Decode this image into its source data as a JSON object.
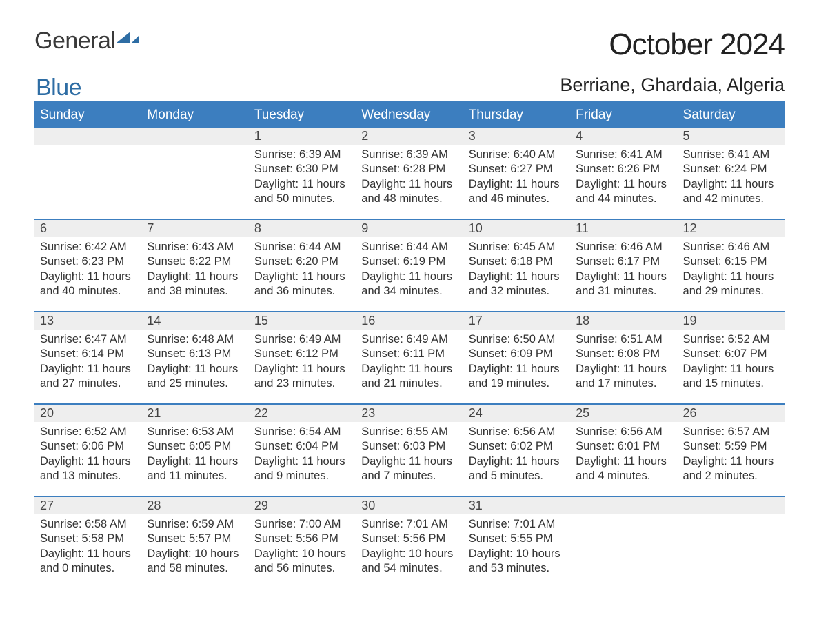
{
  "logo": {
    "text1": "General",
    "text2": "Blue",
    "icon_color": "#2e6da4"
  },
  "title": "October 2024",
  "location": "Berriane, Ghardaia, Algeria",
  "colors": {
    "header_bg": "#3c7ebf",
    "header_text": "#ffffff",
    "daynum_bg": "#eeeeee",
    "row_divider": "#3c7ebf",
    "body_text": "#333333",
    "page_bg": "#ffffff"
  },
  "typography": {
    "title_fontsize": 44,
    "location_fontsize": 27,
    "weekday_fontsize": 19,
    "daynum_fontsize": 18,
    "body_fontsize": 16.5
  },
  "weekdays": [
    "Sunday",
    "Monday",
    "Tuesday",
    "Wednesday",
    "Thursday",
    "Friday",
    "Saturday"
  ],
  "weeks": [
    [
      null,
      null,
      {
        "n": "1",
        "sr": "Sunrise: 6:39 AM",
        "ss": "Sunset: 6:30 PM",
        "d1": "Daylight: 11 hours",
        "d2": "and 50 minutes."
      },
      {
        "n": "2",
        "sr": "Sunrise: 6:39 AM",
        "ss": "Sunset: 6:28 PM",
        "d1": "Daylight: 11 hours",
        "d2": "and 48 minutes."
      },
      {
        "n": "3",
        "sr": "Sunrise: 6:40 AM",
        "ss": "Sunset: 6:27 PM",
        "d1": "Daylight: 11 hours",
        "d2": "and 46 minutes."
      },
      {
        "n": "4",
        "sr": "Sunrise: 6:41 AM",
        "ss": "Sunset: 6:26 PM",
        "d1": "Daylight: 11 hours",
        "d2": "and 44 minutes."
      },
      {
        "n": "5",
        "sr": "Sunrise: 6:41 AM",
        "ss": "Sunset: 6:24 PM",
        "d1": "Daylight: 11 hours",
        "d2": "and 42 minutes."
      }
    ],
    [
      {
        "n": "6",
        "sr": "Sunrise: 6:42 AM",
        "ss": "Sunset: 6:23 PM",
        "d1": "Daylight: 11 hours",
        "d2": "and 40 minutes."
      },
      {
        "n": "7",
        "sr": "Sunrise: 6:43 AM",
        "ss": "Sunset: 6:22 PM",
        "d1": "Daylight: 11 hours",
        "d2": "and 38 minutes."
      },
      {
        "n": "8",
        "sr": "Sunrise: 6:44 AM",
        "ss": "Sunset: 6:20 PM",
        "d1": "Daylight: 11 hours",
        "d2": "and 36 minutes."
      },
      {
        "n": "9",
        "sr": "Sunrise: 6:44 AM",
        "ss": "Sunset: 6:19 PM",
        "d1": "Daylight: 11 hours",
        "d2": "and 34 minutes."
      },
      {
        "n": "10",
        "sr": "Sunrise: 6:45 AM",
        "ss": "Sunset: 6:18 PM",
        "d1": "Daylight: 11 hours",
        "d2": "and 32 minutes."
      },
      {
        "n": "11",
        "sr": "Sunrise: 6:46 AM",
        "ss": "Sunset: 6:17 PM",
        "d1": "Daylight: 11 hours",
        "d2": "and 31 minutes."
      },
      {
        "n": "12",
        "sr": "Sunrise: 6:46 AM",
        "ss": "Sunset: 6:15 PM",
        "d1": "Daylight: 11 hours",
        "d2": "and 29 minutes."
      }
    ],
    [
      {
        "n": "13",
        "sr": "Sunrise: 6:47 AM",
        "ss": "Sunset: 6:14 PM",
        "d1": "Daylight: 11 hours",
        "d2": "and 27 minutes."
      },
      {
        "n": "14",
        "sr": "Sunrise: 6:48 AM",
        "ss": "Sunset: 6:13 PM",
        "d1": "Daylight: 11 hours",
        "d2": "and 25 minutes."
      },
      {
        "n": "15",
        "sr": "Sunrise: 6:49 AM",
        "ss": "Sunset: 6:12 PM",
        "d1": "Daylight: 11 hours",
        "d2": "and 23 minutes."
      },
      {
        "n": "16",
        "sr": "Sunrise: 6:49 AM",
        "ss": "Sunset: 6:11 PM",
        "d1": "Daylight: 11 hours",
        "d2": "and 21 minutes."
      },
      {
        "n": "17",
        "sr": "Sunrise: 6:50 AM",
        "ss": "Sunset: 6:09 PM",
        "d1": "Daylight: 11 hours",
        "d2": "and 19 minutes."
      },
      {
        "n": "18",
        "sr": "Sunrise: 6:51 AM",
        "ss": "Sunset: 6:08 PM",
        "d1": "Daylight: 11 hours",
        "d2": "and 17 minutes."
      },
      {
        "n": "19",
        "sr": "Sunrise: 6:52 AM",
        "ss": "Sunset: 6:07 PM",
        "d1": "Daylight: 11 hours",
        "d2": "and 15 minutes."
      }
    ],
    [
      {
        "n": "20",
        "sr": "Sunrise: 6:52 AM",
        "ss": "Sunset: 6:06 PM",
        "d1": "Daylight: 11 hours",
        "d2": "and 13 minutes."
      },
      {
        "n": "21",
        "sr": "Sunrise: 6:53 AM",
        "ss": "Sunset: 6:05 PM",
        "d1": "Daylight: 11 hours",
        "d2": "and 11 minutes."
      },
      {
        "n": "22",
        "sr": "Sunrise: 6:54 AM",
        "ss": "Sunset: 6:04 PM",
        "d1": "Daylight: 11 hours",
        "d2": "and 9 minutes."
      },
      {
        "n": "23",
        "sr": "Sunrise: 6:55 AM",
        "ss": "Sunset: 6:03 PM",
        "d1": "Daylight: 11 hours",
        "d2": "and 7 minutes."
      },
      {
        "n": "24",
        "sr": "Sunrise: 6:56 AM",
        "ss": "Sunset: 6:02 PM",
        "d1": "Daylight: 11 hours",
        "d2": "and 5 minutes."
      },
      {
        "n": "25",
        "sr": "Sunrise: 6:56 AM",
        "ss": "Sunset: 6:01 PM",
        "d1": "Daylight: 11 hours",
        "d2": "and 4 minutes."
      },
      {
        "n": "26",
        "sr": "Sunrise: 6:57 AM",
        "ss": "Sunset: 5:59 PM",
        "d1": "Daylight: 11 hours",
        "d2": "and 2 minutes."
      }
    ],
    [
      {
        "n": "27",
        "sr": "Sunrise: 6:58 AM",
        "ss": "Sunset: 5:58 PM",
        "d1": "Daylight: 11 hours",
        "d2": "and 0 minutes."
      },
      {
        "n": "28",
        "sr": "Sunrise: 6:59 AM",
        "ss": "Sunset: 5:57 PM",
        "d1": "Daylight: 10 hours",
        "d2": "and 58 minutes."
      },
      {
        "n": "29",
        "sr": "Sunrise: 7:00 AM",
        "ss": "Sunset: 5:56 PM",
        "d1": "Daylight: 10 hours",
        "d2": "and 56 minutes."
      },
      {
        "n": "30",
        "sr": "Sunrise: 7:01 AM",
        "ss": "Sunset: 5:56 PM",
        "d1": "Daylight: 10 hours",
        "d2": "and 54 minutes."
      },
      {
        "n": "31",
        "sr": "Sunrise: 7:01 AM",
        "ss": "Sunset: 5:55 PM",
        "d1": "Daylight: 10 hours",
        "d2": "and 53 minutes."
      },
      null,
      null
    ]
  ]
}
